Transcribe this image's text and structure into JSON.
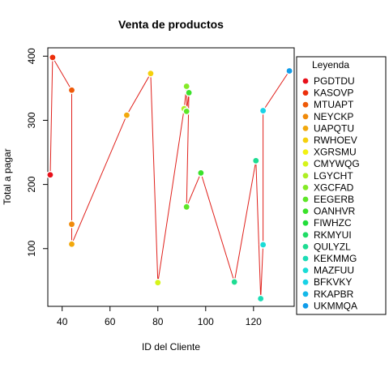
{
  "chart_data": {
    "type": "scatter",
    "title": "Venta de productos",
    "xlabel": "ID del Cliente",
    "ylabel": "Total a pagar",
    "xlim": [
      34,
      137
    ],
    "ylim": [
      10,
      413
    ],
    "x_ticks": [
      40,
      60,
      80,
      100,
      120
    ],
    "y_ticks": [
      100,
      200,
      300,
      400
    ],
    "line_color": "#E0201B",
    "legend": {
      "title": "Leyenda",
      "placement": "right",
      "items": [
        {
          "label": "PGDTDU",
          "color": "#E8101A"
        },
        {
          "label": "KASOVP",
          "color": "#EC2F0B"
        },
        {
          "label": "MTUAPT",
          "color": "#EE5A08"
        },
        {
          "label": "NEYCKP",
          "color": "#F08A0A"
        },
        {
          "label": "UAPQTU",
          "color": "#F2A80C"
        },
        {
          "label": "RWHOEV",
          "color": "#F5D00C"
        },
        {
          "label": "XGRSMU",
          "color": "#F2F212"
        },
        {
          "label": "CMYWQG",
          "color": "#D6F41A"
        },
        {
          "label": "LGYCHT",
          "color": "#AEEE24"
        },
        {
          "label": "XGCFAD",
          "color": "#84EA26"
        },
        {
          "label": "EEGERB",
          "color": "#5DE628"
        },
        {
          "label": "OANHVR",
          "color": "#3AE22A"
        },
        {
          "label": "FIWHZC",
          "color": "#22DE3A"
        },
        {
          "label": "RKMYUI",
          "color": "#20DC66"
        },
        {
          "label": "QULYZL",
          "color": "#1EDC92"
        },
        {
          "label": "KEKMMG",
          "color": "#1CDCB6"
        },
        {
          "label": "MAZFUU",
          "color": "#1ADCD6"
        },
        {
          "label": "BFKVKY",
          "color": "#18D2E6"
        },
        {
          "label": "RKAPBR",
          "color": "#14B8E8"
        },
        {
          "label": "UKMMQA",
          "color": "#109CEA"
        }
      ]
    },
    "points": [
      {
        "x": 35,
        "y": 215,
        "color": "#E8101A"
      },
      {
        "x": 36,
        "y": 398,
        "color": "#EC2F0B"
      },
      {
        "x": 44,
        "y": 347,
        "color": "#EE5A08"
      },
      {
        "x": 44,
        "y": 138,
        "color": "#F08A0A"
      },
      {
        "x": 44,
        "y": 107,
        "color": "#F2A80C"
      },
      {
        "x": 67,
        "y": 308,
        "color": "#F2A80C"
      },
      {
        "x": 77,
        "y": 373,
        "color": "#F5D00C"
      },
      {
        "x": 80,
        "y": 47,
        "color": "#D6F41A"
      },
      {
        "x": 91,
        "y": 318,
        "color": "#AEEE24"
      },
      {
        "x": 92,
        "y": 353,
        "color": "#84EA26"
      },
      {
        "x": 92,
        "y": 314,
        "color": "#5DE628"
      },
      {
        "x": 93,
        "y": 343,
        "color": "#3AE22A"
      },
      {
        "x": 92,
        "y": 165,
        "color": "#5DE628"
      },
      {
        "x": 98,
        "y": 218,
        "color": "#3AE22A"
      },
      {
        "x": 112,
        "y": 48,
        "color": "#1EDC92"
      },
      {
        "x": 121,
        "y": 237,
        "color": "#1EDC92"
      },
      {
        "x": 123,
        "y": 22,
        "color": "#1CDCB6"
      },
      {
        "x": 124,
        "y": 106,
        "color": "#1ADCD6"
      },
      {
        "x": 124,
        "y": 315,
        "color": "#18D2E6"
      },
      {
        "x": 135,
        "y": 377,
        "color": "#109CEA"
      }
    ]
  }
}
